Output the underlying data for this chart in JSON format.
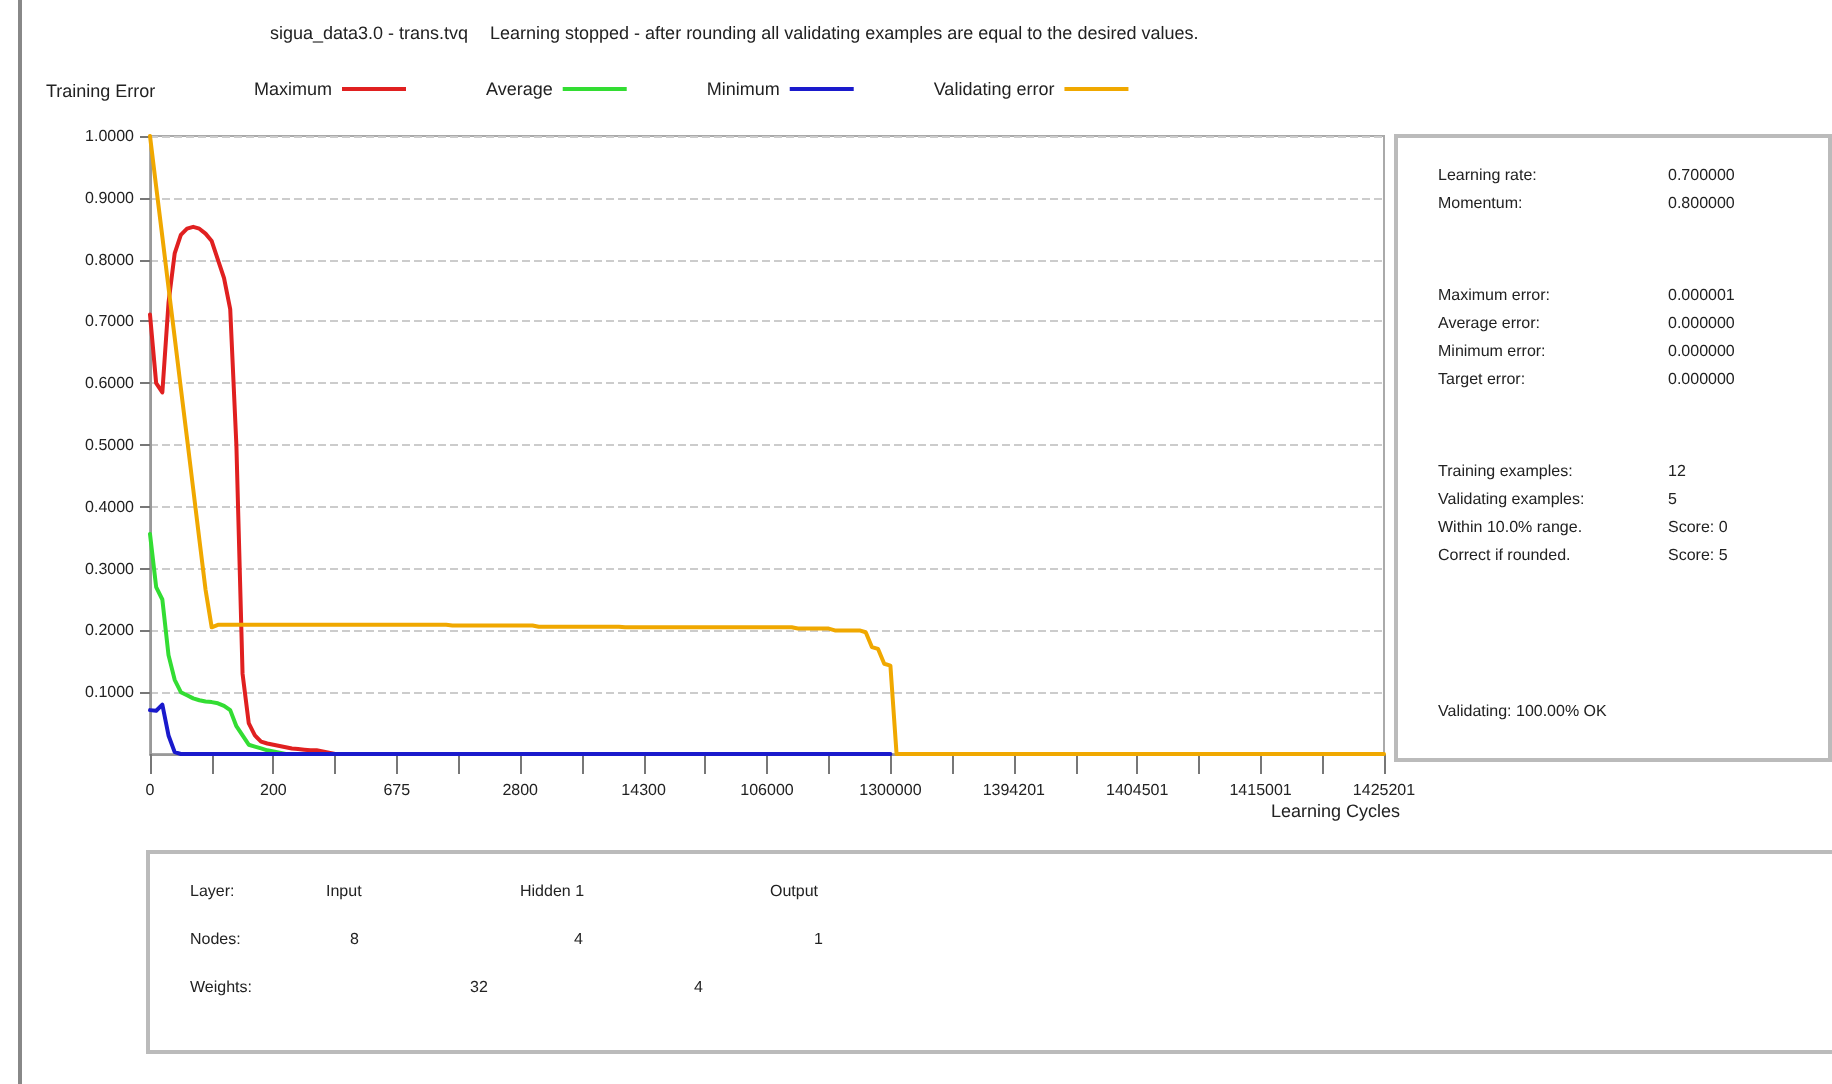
{
  "chart_data": [
    {
      "type": "line",
      "title": "sigua_data3.0 - trans.tvq",
      "subtitle": "Learning stopped - after rounding all validating examples are equal to the desired values.",
      "xlabel": "Learning Cycles",
      "legend_title": "Training Error",
      "legend": "top left",
      "grid": "y",
      "ylim": [
        0,
        1
      ],
      "categories": [
        "0",
        null,
        null,
        null,
        null,
        null,
        null,
        null,
        null,
        null,
        null,
        null,
        null,
        null,
        null,
        null,
        null,
        null,
        null,
        null,
        "200",
        null,
        null,
        null,
        null,
        null,
        null,
        null,
        null,
        null,
        null,
        null,
        null,
        null,
        null,
        null,
        null,
        null,
        null,
        null,
        "675",
        null,
        null,
        null,
        null,
        null,
        null,
        null,
        null,
        null,
        null,
        null,
        null,
        null,
        null,
        null,
        null,
        null,
        null,
        null,
        "2800",
        null,
        null,
        null,
        null,
        null,
        null,
        null,
        null,
        null,
        null,
        null,
        null,
        null,
        null,
        null,
        null,
        null,
        null,
        null,
        "14300",
        null,
        null,
        null,
        null,
        null,
        null,
        null,
        null,
        null,
        null,
        null,
        null,
        null,
        null,
        null,
        null,
        null,
        null,
        null,
        "106000",
        null,
        null,
        null,
        null,
        null,
        null,
        null,
        null,
        null,
        null,
        null,
        null,
        null,
        null,
        null,
        null,
        null,
        null,
        null,
        "1300000",
        null,
        null,
        null,
        null,
        null,
        null,
        null,
        null,
        null,
        null,
        null,
        null,
        null,
        null,
        null,
        null,
        null,
        null,
        null,
        "1394201",
        null,
        null,
        null,
        null,
        null,
        null,
        null,
        null,
        null,
        null,
        null,
        null,
        null,
        null,
        null,
        null,
        null,
        null,
        null,
        "1404501",
        null,
        null,
        null,
        null,
        null,
        null,
        null,
        null,
        null,
        null,
        null,
        null,
        null,
        null,
        null,
        null,
        null,
        null,
        null,
        "1415001",
        null,
        null,
        null,
        null,
        null,
        null,
        null,
        null,
        null,
        null,
        null,
        null,
        null,
        null,
        null,
        null,
        null,
        null,
        null,
        "1425201"
      ],
      "yticks": [
        {
          "value": 0.1,
          "label": "0.1000"
        },
        {
          "value": 0.2,
          "label": "0.2000"
        },
        {
          "value": 0.3,
          "label": "0.3000"
        },
        {
          "value": 0.4,
          "label": "0.4000"
        },
        {
          "value": 0.5,
          "label": "0.5000"
        },
        {
          "value": 0.6,
          "label": "0.6000"
        },
        {
          "value": 0.7,
          "label": "0.7000"
        },
        {
          "value": 0.8,
          "label": "0.8000"
        },
        {
          "value": 0.9,
          "label": "0.9000"
        },
        {
          "value": 1,
          "label": "1.0000"
        }
      ],
      "series": [
        {
          "name": "Maximum",
          "color": "#e02020",
          "values": [
            0.711,
            0.6,
            0.585,
            0.73,
            0.81,
            0.84,
            0.85,
            0.853,
            0.85,
            0.842,
            0.83,
            0.8,
            0.77,
            0.72,
            0.5,
            0.13,
            0.05,
            0.03,
            0.02,
            0.017,
            0.015,
            0.013,
            0.011,
            0.009,
            0.008,
            0.007,
            0.006,
            0.006,
            0.004,
            0.002,
            0,
            null,
            null,
            null,
            null,
            null,
            null,
            null,
            null,
            null,
            null,
            null,
            null,
            null,
            null,
            null,
            null,
            null,
            null,
            null,
            null,
            null,
            null,
            null,
            null,
            null,
            null,
            null,
            null,
            null,
            null,
            null,
            null,
            null,
            null,
            null,
            null,
            null,
            null,
            null,
            null,
            null,
            null,
            null,
            null,
            null,
            null,
            null,
            null,
            null,
            null,
            null,
            null,
            null,
            null,
            null,
            null,
            null,
            null,
            null,
            null,
            null,
            null,
            null,
            null,
            null,
            null,
            null,
            null,
            null,
            null,
            null,
            null,
            null,
            null,
            null,
            null,
            null,
            null,
            null,
            null,
            null,
            null,
            null,
            null,
            null,
            null,
            null,
            null,
            null,
            null,
            null,
            null,
            null,
            null,
            null,
            null,
            null,
            null,
            null,
            null,
            null,
            null,
            null,
            null,
            null,
            null,
            null,
            null,
            null,
            null,
            null,
            null,
            null,
            null,
            null,
            null,
            null,
            null,
            null,
            null,
            null,
            null,
            null,
            null,
            null,
            null,
            null,
            null,
            null,
            null,
            null,
            null,
            null,
            null,
            null,
            null,
            null,
            null,
            null,
            null,
            null,
            null,
            null,
            null,
            null,
            null,
            null,
            null,
            null,
            null,
            null,
            null,
            null,
            null,
            null,
            null,
            null,
            null,
            null,
            null,
            null,
            null,
            null,
            null,
            null,
            null,
            null,
            null,
            null,
            null
          ]
        },
        {
          "name": "Average",
          "color": "#33dd33",
          "values": [
            0.356,
            0.27,
            0.25,
            0.16,
            0.12,
            0.1,
            0.095,
            0.09,
            0.087,
            0.085,
            0.084,
            0.082,
            0.078,
            0.071,
            0.045,
            0.03,
            0.015,
            0.012,
            0.009,
            0.006,
            0.004,
            0.002,
            0,
            null,
            null,
            null,
            null,
            null,
            null,
            null,
            null,
            null,
            null,
            null,
            null,
            null,
            null,
            null,
            null,
            null,
            null,
            null,
            null,
            null,
            null,
            null,
            null,
            null,
            null,
            null,
            null,
            null,
            null,
            null,
            null,
            null,
            null,
            null,
            null,
            null,
            null,
            null,
            null,
            null,
            null,
            null,
            null,
            null,
            null,
            null,
            null,
            null,
            null,
            null,
            null,
            null,
            null,
            null,
            null,
            null,
            null,
            null,
            null,
            null,
            null,
            null,
            null,
            null,
            null,
            null,
            null,
            null,
            null,
            null,
            null,
            null,
            null,
            null,
            null,
            null,
            null,
            null,
            null,
            null,
            null,
            null,
            null,
            null,
            null,
            null,
            null,
            null,
            null,
            null,
            null,
            null,
            null,
            null,
            null,
            null,
            null,
            null,
            null,
            null,
            null,
            null,
            null,
            null,
            null,
            null,
            null,
            null,
            null,
            null,
            null,
            null,
            null,
            null,
            null,
            null,
            null,
            null,
            null,
            null,
            null,
            null,
            null,
            null,
            null,
            null,
            null,
            null,
            null,
            null,
            null,
            null,
            null,
            null,
            null,
            null,
            null,
            null,
            null,
            null,
            null,
            null,
            null,
            null,
            null,
            null,
            null,
            null,
            null,
            null,
            null,
            null,
            null,
            null,
            null,
            null,
            null,
            null,
            null,
            null,
            null,
            null,
            null,
            null,
            null,
            null,
            null,
            null,
            null,
            null,
            null,
            null,
            null,
            null,
            null,
            null,
            null
          ]
        },
        {
          "name": "Minimum",
          "color": "#1a1acc",
          "values": [
            0.071,
            0.07,
            0.08,
            0.03,
            0.003,
            0,
            0,
            0,
            0,
            0,
            0,
            0,
            0,
            0,
            0,
            0,
            0,
            0,
            0,
            0,
            0,
            0,
            0,
            0,
            0,
            0,
            0,
            0,
            0,
            0,
            0,
            0,
            0,
            0,
            0,
            0,
            0,
            0,
            0,
            0,
            0,
            0,
            0,
            0,
            0,
            0,
            0,
            0,
            0,
            0,
            0,
            0,
            0,
            0,
            0,
            0,
            0,
            0,
            0,
            0,
            0,
            0,
            0,
            0,
            0,
            0,
            0,
            0,
            0,
            0,
            0,
            0,
            0,
            0,
            0,
            0,
            0,
            0,
            0,
            0,
            0,
            0,
            0,
            0,
            0,
            0,
            0,
            0,
            0,
            0,
            0,
            0,
            0,
            0,
            0,
            0,
            0,
            0,
            0,
            0,
            0,
            0,
            0,
            0,
            0,
            0,
            0,
            0,
            0,
            0,
            0,
            0,
            0,
            0,
            0,
            0,
            0,
            0,
            0,
            0,
            0,
            null,
            null,
            null,
            null,
            null,
            null,
            null,
            null,
            null,
            null,
            null,
            null,
            null,
            null,
            null,
            null,
            null,
            null,
            null,
            null,
            null,
            null,
            null,
            null,
            null,
            null,
            null,
            null,
            null,
            null,
            null,
            null,
            null,
            null,
            null,
            null,
            null,
            null,
            null,
            null,
            null,
            null,
            null,
            null,
            null,
            null,
            null,
            null,
            null,
            null,
            null,
            null,
            null,
            null,
            null,
            null,
            null,
            null,
            null,
            null,
            null,
            null,
            null,
            null,
            null,
            null,
            null,
            null,
            null,
            null,
            null,
            null,
            null,
            null,
            null,
            null,
            null,
            null,
            null,
            null
          ]
        },
        {
          "name": "Validating error",
          "color": "#f0a800",
          "values": [
            1.0,
            0.918,
            0.837,
            0.755,
            0.674,
            0.592,
            0.511,
            0.429,
            0.347,
            0.266,
            0.205,
            0.209,
            0.209,
            0.209,
            0.209,
            0.209,
            0.209,
            0.209,
            0.209,
            0.209,
            0.209,
            0.209,
            0.209,
            0.209,
            0.209,
            0.209,
            0.209,
            0.209,
            0.209,
            0.209,
            0.209,
            0.209,
            0.209,
            0.209,
            0.209,
            0.209,
            0.209,
            0.209,
            0.209,
            0.209,
            0.209,
            0.209,
            0.209,
            0.209,
            0.209,
            0.209,
            0.209,
            0.209,
            0.209,
            0.208,
            0.208,
            0.208,
            0.208,
            0.208,
            0.208,
            0.208,
            0.208,
            0.208,
            0.208,
            0.208,
            0.208,
            0.208,
            0.208,
            0.206,
            0.206,
            0.206,
            0.206,
            0.206,
            0.206,
            0.206,
            0.206,
            0.206,
            0.206,
            0.206,
            0.206,
            0.206,
            0.206,
            0.205,
            0.205,
            0.205,
            0.205,
            0.205,
            0.205,
            0.205,
            0.205,
            0.205,
            0.205,
            0.205,
            0.205,
            0.205,
            0.205,
            0.205,
            0.205,
            0.205,
            0.205,
            0.205,
            0.205,
            0.205,
            0.205,
            0.205,
            0.205,
            0.205,
            0.205,
            0.205,
            0.205,
            0.203,
            0.203,
            0.203,
            0.203,
            0.203,
            0.203,
            0.2,
            0.2,
            0.2,
            0.2,
            0.2,
            0.197,
            0.173,
            0.17,
            0.146,
            0.143,
            0,
            0,
            0,
            0,
            0,
            0,
            0,
            0,
            0,
            0,
            0,
            0,
            0,
            0,
            0,
            0,
            0,
            0,
            0,
            0,
            0,
            0,
            0,
            0,
            0,
            0,
            0,
            0,
            0,
            0,
            0,
            0,
            0,
            0,
            0,
            0,
            0,
            0,
            0,
            0,
            0,
            0,
            0,
            0,
            0,
            0,
            0,
            0,
            0,
            0,
            0,
            0,
            0,
            0,
            0,
            0,
            0,
            0,
            0,
            0,
            0,
            0,
            0,
            0,
            0,
            0,
            0,
            0,
            0,
            0,
            0,
            0,
            0,
            0,
            0,
            0,
            0,
            0,
            0,
            0
          ]
        }
      ]
    },
    {
      "type": "other",
      "annotations": [
        "Learning rate:",
        "0.700000",
        "Momentum:",
        "0.800000",
        "Maximum error:",
        "0.000001",
        "Average error:",
        "0.000000",
        "Minimum error:",
        "0.000000",
        "Target error:",
        "0.000000",
        "Training examples:",
        "12",
        "Validating examples:",
        "5",
        "Within 10.0% range.",
        "Score: 0",
        "Correct if rounded.",
        "Score: 5",
        "Validating: 100.00% OK"
      ]
    },
    {
      "type": "other",
      "annotations": [
        "Layer:",
        "Input",
        "Hidden 1",
        "Output",
        "Nodes:",
        "8",
        "4",
        "1",
        "Weights:",
        "32",
        "4"
      ]
    }
  ]
}
